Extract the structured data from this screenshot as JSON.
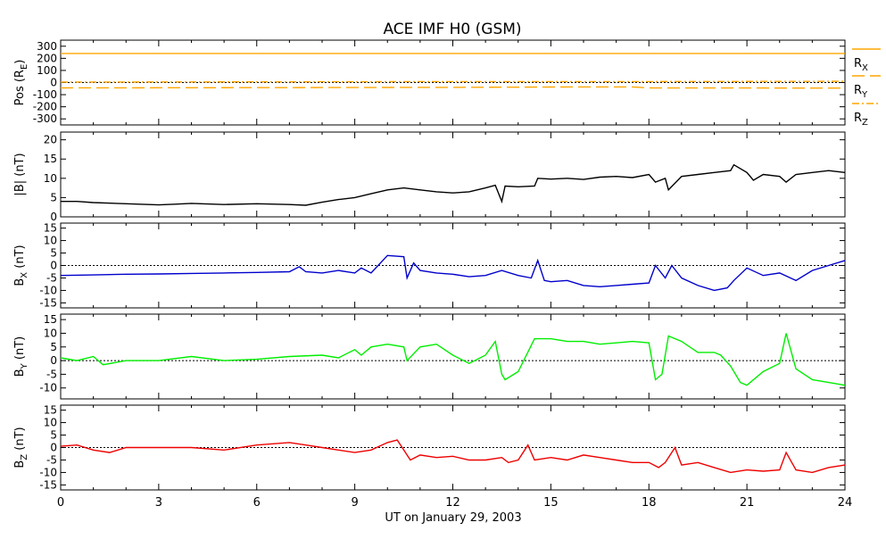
{
  "page": {
    "title": "ACE IMF H0 (GSM)",
    "xlabel": "UT on January 29, 2003"
  },
  "chart_data": {
    "type": "line",
    "title": "ACE IMF H0 (GSM)",
    "xlabel": "UT on January 29, 2003",
    "x_ticks": [
      "0",
      "3",
      "6",
      "9",
      "12",
      "15",
      "18",
      "21",
      "24"
    ],
    "xlim": [
      0,
      24
    ],
    "panels": [
      {
        "id": "pos",
        "ylabel": "Pos (Rₑ)",
        "ylabel_main": "Pos (R",
        "ylabel_sub": "E",
        "ylabel_tail": ")",
        "ylim": [
          -350,
          350
        ],
        "y_ticks": [
          300,
          200,
          100,
          0,
          -100,
          -200,
          -300
        ],
        "zero_line": true,
        "legend": [
          {
            "main": "R",
            "sub": "X",
            "color": "#ffa500",
            "dash": "solid"
          },
          {
            "main": "R",
            "sub": "Y",
            "color": "#ffa500",
            "dash": "long-dash"
          },
          {
            "main": "R",
            "sub": "Z",
            "color": "#ffa500",
            "dash": "dash-dot"
          }
        ],
        "series": [
          {
            "name": "R_X",
            "color": "#ffa500",
            "dash": "solid",
            "x": [
              0,
              24
            ],
            "y": [
              240,
              240
            ]
          },
          {
            "name": "R_Y",
            "color": "#ffa500",
            "dash": "long-dash",
            "x": [
              0,
              6,
              12,
              16,
              17.5,
              18,
              24
            ],
            "y": [
              -44,
              -42,
              -40,
              -36,
              -36,
              -44,
              -46
            ]
          },
          {
            "name": "R_Z",
            "color": "#ffa500",
            "dash": "dash-dot",
            "x": [
              0,
              6,
              12,
              18,
              24
            ],
            "y": [
              4,
              6,
              8,
              8,
              10
            ]
          }
        ]
      },
      {
        "id": "bmag",
        "ylabel_main": "|B| (nT)",
        "ylabel_sub": "",
        "ylabel_tail": "",
        "ylim": [
          0,
          22
        ],
        "y_ticks": [
          20,
          15,
          10,
          5,
          0
        ],
        "zero_line": false,
        "series": [
          {
            "name": "|B|",
            "color": "#000000",
            "x": [
              0,
              0.5,
              1,
              2,
              3,
              3.5,
              4,
              5,
              6,
              7,
              7.5,
              8,
              8.5,
              9,
              9.5,
              10,
              10.5,
              11,
              11.5,
              12,
              12.5,
              13,
              13.3,
              13.5,
              13.6,
              14,
              14.5,
              14.6,
              15,
              15.5,
              16,
              16.5,
              17,
              17.5,
              18,
              18.2,
              18.5,
              18.6,
              19,
              19.5,
              20,
              20.5,
              20.6,
              21,
              21.2,
              21.5,
              22,
              22.2,
              22.5,
              23,
              23.5,
              24
            ],
            "y": [
              4,
              4,
              3.7,
              3.4,
              3.1,
              3.3,
              3.5,
              3.2,
              3.4,
              3.2,
              3,
              3.8,
              4.5,
              5,
              6,
              7,
              7.5,
              7,
              6.5,
              6.2,
              6.5,
              7.5,
              8.2,
              4,
              8,
              7.8,
              8,
              10,
              9.8,
              10,
              9.7,
              10.3,
              10.5,
              10.2,
              11,
              9,
              10,
              7,
              10.5,
              11,
              11.5,
              12,
              13.5,
              11.5,
              9.5,
              11,
              10.5,
              9,
              11,
              11.5,
              12,
              11.5
            ]
          }
        ]
      },
      {
        "id": "bx",
        "ylabel_main": "B",
        "ylabel_sub": "X",
        "ylabel_tail": " (nT)",
        "ylim": [
          -17,
          17
        ],
        "y_ticks": [
          15,
          10,
          5,
          0,
          -5,
          -10,
          -15
        ],
        "zero_line": true,
        "series": [
          {
            "name": "B_X",
            "color": "#0000cc",
            "x": [
              0,
              1,
              2,
              3,
              4,
              5,
              6,
              7,
              7.3,
              7.5,
              8,
              8.5,
              9,
              9.2,
              9.5,
              10,
              10.5,
              10.6,
              10.8,
              11,
              11.5,
              12,
              12.5,
              13,
              13.5,
              14,
              14.4,
              14.6,
              14.8,
              15,
              15.5,
              16,
              16.5,
              17,
              17.5,
              18,
              18.2,
              18.5,
              18.7,
              19,
              19.5,
              20,
              20.4,
              20.6,
              21,
              21.5,
              22,
              22.5,
              23,
              23.5,
              24
            ],
            "y": [
              -4,
              -3.8,
              -3.5,
              -3.4,
              -3.2,
              -3,
              -2.8,
              -2.5,
              -0.5,
              -2.5,
              -3,
              -2,
              -3,
              -1,
              -3,
              4,
              3.5,
              -5,
              1,
              -2,
              -3,
              -3.5,
              -4.5,
              -4,
              -2,
              -4,
              -5,
              2,
              -6,
              -6.5,
              -6,
              -8,
              -8.5,
              -8,
              -7.5,
              -7,
              0,
              -5,
              0,
              -5,
              -8,
              -10,
              -9,
              -6,
              -1,
              -4,
              -3,
              -6,
              -2,
              0,
              2
            ]
          }
        ]
      },
      {
        "id": "by",
        "ylabel_main": "B",
        "ylabel_sub": "Y",
        "ylabel_tail": " (nT)",
        "ylim": [
          -14,
          17
        ],
        "y_ticks": [
          15,
          10,
          5,
          0,
          -5,
          -10
        ],
        "zero_line": true,
        "series": [
          {
            "name": "B_Y",
            "color": "#00ee00",
            "x": [
              0,
              0.5,
              1,
              1.3,
              2,
              3,
              4,
              5,
              6,
              7,
              8,
              8.5,
              9,
              9.2,
              9.5,
              10,
              10.5,
              10.6,
              11,
              11.5,
              12,
              12.5,
              13,
              13.3,
              13.5,
              13.6,
              14,
              14.5,
              15,
              15.5,
              16,
              16.5,
              17,
              17.5,
              18,
              18.2,
              18.4,
              18.6,
              19,
              19.5,
              20,
              20.2,
              20.5,
              20.8,
              21,
              21.5,
              22,
              22.2,
              22.5,
              23,
              23.5,
              24
            ],
            "y": [
              1,
              0,
              1.5,
              -1.5,
              0,
              0,
              1.5,
              0,
              0.5,
              1.5,
              2,
              1,
              4,
              2,
              5,
              6,
              5,
              0,
              5,
              6,
              2,
              -1,
              2,
              7,
              -5,
              -7,
              -4,
              8,
              8,
              7,
              7,
              6,
              6.5,
              7,
              6.5,
              -7,
              -5,
              9,
              7,
              3,
              3,
              2,
              -2,
              -8,
              -9,
              -4,
              -1,
              10,
              -3,
              -7,
              -8,
              -9
            ]
          }
        ]
      },
      {
        "id": "bz",
        "ylabel_main": "B",
        "ylabel_sub": "Z",
        "ylabel_tail": " (nT)",
        "ylim": [
          -17,
          17
        ],
        "y_ticks": [
          15,
          10,
          5,
          0,
          -5,
          -10,
          -15
        ],
        "zero_line": true,
        "series": [
          {
            "name": "B_Z",
            "color": "#ee0000",
            "x": [
              0,
              0.5,
              1,
              1.5,
              2,
              3,
              4,
              5,
              6,
              7,
              7.5,
              8,
              8.5,
              9,
              9.5,
              10,
              10.3,
              10.5,
              10.7,
              11,
              11.5,
              12,
              12.5,
              13,
              13.5,
              13.7,
              14,
              14.3,
              14.5,
              15,
              15.5,
              16,
              16.5,
              17,
              17.5,
              18,
              18.3,
              18.5,
              18.8,
              19,
              19.5,
              20,
              20.5,
              21,
              21.5,
              22,
              22.2,
              22.5,
              23,
              23.5,
              24
            ],
            "y": [
              0.5,
              1,
              -1,
              -2,
              0,
              0,
              0,
              -1,
              1,
              2,
              1,
              0,
              -1,
              -2,
              -1,
              2,
              3,
              -1,
              -5,
              -3,
              -4,
              -3.5,
              -5,
              -5,
              -4,
              -6,
              -5,
              1,
              -5,
              -4,
              -5,
              -3,
              -4,
              -5,
              -6,
              -6,
              -8,
              -6,
              0,
              -7,
              -6,
              -8,
              -10,
              -9,
              -9.5,
              -9,
              -2,
              -9,
              -10,
              -8,
              -7
            ]
          }
        ]
      }
    ]
  }
}
